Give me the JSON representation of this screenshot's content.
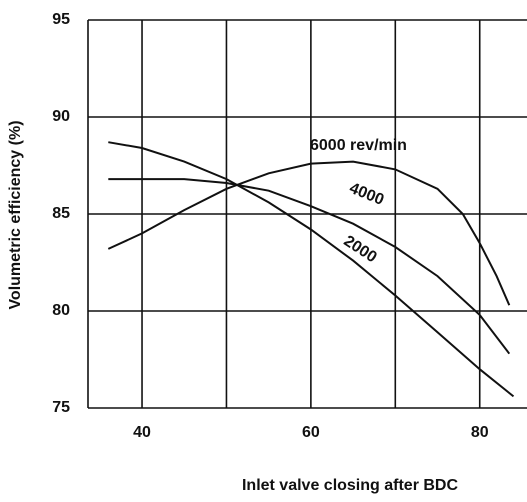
{
  "chart_data": {
    "type": "line",
    "xlabel": "Inlet valve closing after BDC",
    "ylabel": "Volumetric efficiency (%)",
    "xlim": [
      33.6,
      85.6
    ],
    "xticks": [
      40,
      60,
      80
    ],
    "minor_xticks": [
      50,
      70
    ],
    "ylim": [
      75,
      95
    ],
    "yticks": [
      75,
      80,
      85,
      90,
      95
    ],
    "grid": true,
    "series": [
      {
        "name": "6000 rev/min",
        "color": "#111111",
        "x": [
          36,
          40,
          45,
          50,
          55,
          60,
          65,
          70,
          75,
          78,
          80,
          82,
          83.5
        ],
        "values": [
          83.2,
          84.0,
          85.2,
          86.3,
          87.1,
          87.6,
          87.7,
          87.3,
          86.3,
          85.0,
          83.5,
          81.8,
          80.3
        ]
      },
      {
        "name": "4000",
        "color": "#111111",
        "x": [
          36,
          40,
          45,
          50,
          55,
          60,
          65,
          70,
          75,
          80,
          83.5
        ],
        "values": [
          86.8,
          86.8,
          86.8,
          86.6,
          86.2,
          85.4,
          84.5,
          83.3,
          81.8,
          79.8,
          77.8
        ]
      },
      {
        "name": "2000",
        "color": "#111111",
        "x": [
          36,
          40,
          45,
          50,
          55,
          60,
          65,
          70,
          75,
          80,
          84
        ],
        "values": [
          88.7,
          88.4,
          87.7,
          86.8,
          85.6,
          84.2,
          82.6,
          80.8,
          78.9,
          77.0,
          75.6
        ]
      }
    ]
  }
}
